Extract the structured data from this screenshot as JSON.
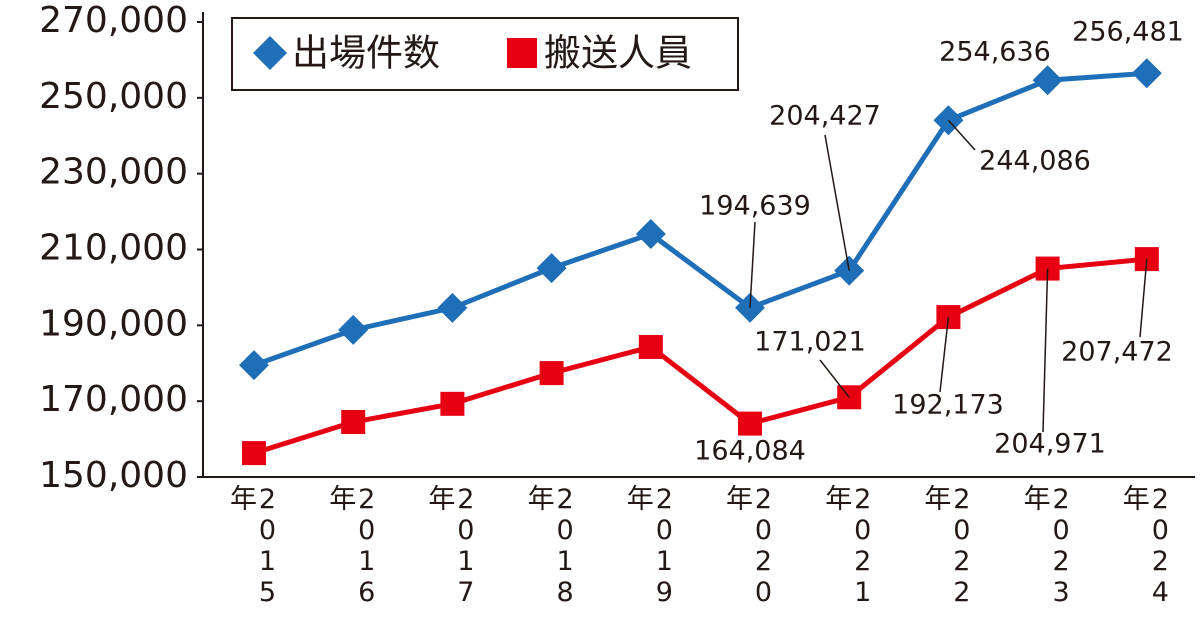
{
  "chart_data": {
    "type": "line",
    "categories": [
      "2015年",
      "2016年",
      "2017年",
      "2018年",
      "2019年",
      "2020年",
      "2021年",
      "2022年",
      "2023年",
      "2024年"
    ],
    "series": [
      {
        "name": "出場件数",
        "color": "#1f6fb8",
        "marker": "diamond",
        "values": [
          179500,
          188800,
          194600,
          205100,
          214100,
          194639,
          204427,
          244086,
          254636,
          256481
        ],
        "value_labels": [
          null,
          null,
          null,
          null,
          null,
          "194,639",
          "204,427",
          "244,086",
          "254,636",
          "256,481"
        ]
      },
      {
        "name": "搬送人員",
        "color": "#e60012",
        "marker": "square",
        "values": [
          156300,
          164500,
          169300,
          177400,
          184300,
          164084,
          171021,
          192173,
          204971,
          207472
        ],
        "value_labels": [
          null,
          null,
          null,
          null,
          null,
          "164,084",
          "171,021",
          "192,173",
          "204,971",
          "207,472"
        ]
      }
    ],
    "ylim": [
      150000,
      270000
    ],
    "yticks": [
      {
        "value": 150000,
        "label": "150,000"
      },
      {
        "value": 170000,
        "label": "170,000"
      },
      {
        "value": 190000,
        "label": "190,000"
      },
      {
        "value": 210000,
        "label": "210,000"
      },
      {
        "value": 230000,
        "label": "230,000"
      },
      {
        "value": 250000,
        "label": "250,000"
      },
      {
        "value": 270000,
        "label": "270,000"
      }
    ],
    "grid": false
  }
}
